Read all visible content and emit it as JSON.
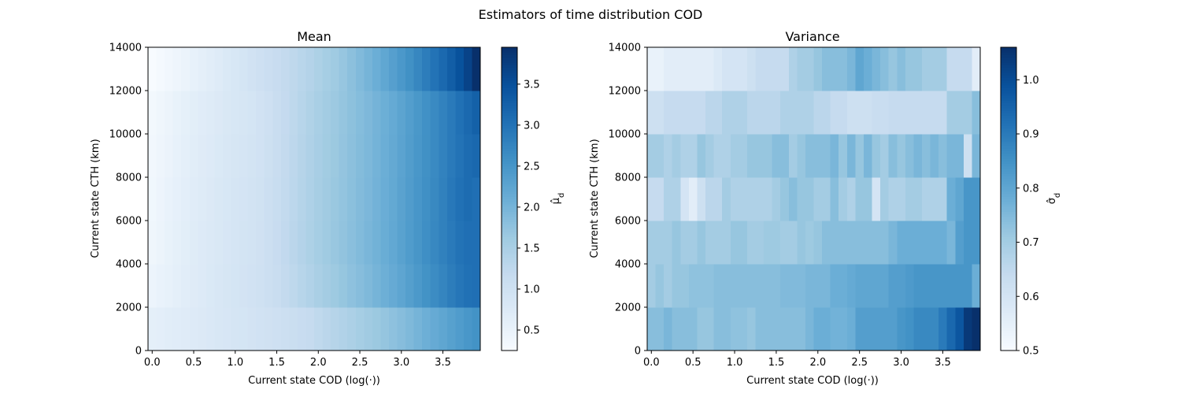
{
  "figure": {
    "suptitle": "Estimators of time distribution COD",
    "colormap": [
      "#f7fbff",
      "#deebf7",
      "#c6dbef",
      "#9ecae1",
      "#6baed6",
      "#4292c6",
      "#2171b5",
      "#08519c",
      "#08306b"
    ]
  },
  "chart_data": [
    {
      "type": "heatmap",
      "title": "Mean",
      "xlabel": "Current state COD (log(·))",
      "ylabel": "Current state CTH (km)",
      "colorbar_label": "μ̂_d",
      "xlim": [
        -0.05,
        3.95
      ],
      "ylim": [
        0,
        14000
      ],
      "xticks": [
        "0.0",
        "0.5",
        "1.0",
        "1.5",
        "2.0",
        "2.5",
        "3.0",
        "3.5"
      ],
      "xtick_values": [
        0.0,
        0.5,
        1.0,
        1.5,
        2.0,
        2.5,
        3.0,
        3.5
      ],
      "yticks": [
        "0",
        "2000",
        "4000",
        "6000",
        "8000",
        "10000",
        "12000",
        "14000"
      ],
      "ytick_values": [
        0,
        2000,
        4000,
        6000,
        8000,
        10000,
        12000,
        14000
      ],
      "colorbar_range": [
        0.25,
        3.95
      ],
      "colorbar_ticks": [
        "0.5",
        "1.0",
        "1.5",
        "2.0",
        "2.5",
        "3.0",
        "3.5"
      ],
      "colorbar_tick_values": [
        0.5,
        1.0,
        1.5,
        2.0,
        2.5,
        3.0,
        3.5
      ],
      "x_bins": 40,
      "y_bin_edges": [
        0,
        2000,
        4000,
        6000,
        8000,
        10000,
        12000,
        14000
      ],
      "values": [
        [
          0.6,
          0.62,
          0.65,
          0.68,
          0.7,
          0.73,
          0.76,
          0.79,
          0.82,
          0.85,
          0.88,
          0.9,
          0.93,
          0.96,
          0.99,
          1.02,
          1.06,
          1.1,
          1.14,
          1.18,
          1.24,
          1.3,
          1.36,
          1.42,
          1.48,
          1.54,
          1.6,
          1.66,
          1.72,
          1.78,
          1.85,
          1.92,
          2.0,
          2.08,
          2.16,
          2.24,
          2.32,
          2.4,
          2.48,
          2.55
        ],
        [
          0.45,
          0.5,
          0.55,
          0.6,
          0.65,
          0.7,
          0.74,
          0.78,
          0.82,
          0.86,
          0.9,
          0.93,
          0.96,
          1.0,
          1.05,
          1.12,
          1.2,
          1.27,
          1.35,
          1.42,
          1.5,
          1.57,
          1.64,
          1.71,
          1.78,
          1.85,
          1.92,
          2.0,
          2.08,
          2.16,
          2.25,
          2.35,
          2.45,
          2.55,
          2.65,
          2.75,
          2.85,
          2.95,
          3.02,
          3.05
        ],
        [
          0.4,
          0.46,
          0.52,
          0.58,
          0.64,
          0.69,
          0.73,
          0.77,
          0.81,
          0.85,
          0.89,
          0.92,
          0.95,
          0.99,
          1.06,
          1.14,
          1.22,
          1.3,
          1.38,
          1.46,
          1.54,
          1.61,
          1.68,
          1.75,
          1.82,
          1.89,
          1.96,
          2.04,
          2.12,
          2.2,
          2.3,
          2.4,
          2.5,
          2.6,
          2.7,
          2.8,
          2.9,
          3.0,
          3.05,
          3.05
        ],
        [
          0.38,
          0.44,
          0.5,
          0.56,
          0.62,
          0.67,
          0.72,
          0.76,
          0.8,
          0.84,
          0.88,
          0.91,
          0.94,
          0.98,
          1.05,
          1.13,
          1.21,
          1.29,
          1.37,
          1.45,
          1.53,
          1.6,
          1.67,
          1.74,
          1.81,
          1.88,
          1.95,
          2.03,
          2.11,
          2.19,
          2.29,
          2.39,
          2.49,
          2.59,
          2.69,
          2.8,
          2.92,
          3.02,
          3.1,
          3.05
        ],
        [
          0.36,
          0.42,
          0.48,
          0.54,
          0.6,
          0.65,
          0.7,
          0.74,
          0.78,
          0.82,
          0.86,
          0.89,
          0.92,
          0.97,
          1.04,
          1.12,
          1.2,
          1.28,
          1.36,
          1.44,
          1.52,
          1.59,
          1.66,
          1.73,
          1.8,
          1.87,
          1.94,
          2.02,
          2.1,
          2.18,
          2.28,
          2.38,
          2.48,
          2.58,
          2.68,
          2.79,
          2.9,
          3.0,
          3.1,
          3.15
        ],
        [
          0.34,
          0.4,
          0.46,
          0.52,
          0.58,
          0.63,
          0.68,
          0.72,
          0.76,
          0.8,
          0.84,
          0.87,
          0.9,
          0.96,
          1.03,
          1.11,
          1.19,
          1.27,
          1.35,
          1.43,
          1.51,
          1.58,
          1.65,
          1.72,
          1.79,
          1.86,
          1.93,
          2.01,
          2.09,
          2.17,
          2.27,
          2.37,
          2.47,
          2.57,
          2.67,
          2.78,
          2.9,
          3.02,
          3.14,
          3.26
        ],
        [
          0.25,
          0.3,
          0.36,
          0.42,
          0.48,
          0.54,
          0.6,
          0.66,
          0.72,
          0.78,
          0.84,
          0.9,
          0.96,
          1.02,
          1.08,
          1.14,
          1.2,
          1.26,
          1.32,
          1.38,
          1.46,
          1.54,
          1.62,
          1.7,
          1.8,
          1.9,
          2.0,
          2.1,
          2.22,
          2.34,
          2.46,
          2.58,
          2.72,
          2.86,
          3.0,
          3.14,
          3.3,
          3.48,
          3.68,
          3.95
        ]
      ]
    },
    {
      "type": "heatmap",
      "title": "Variance",
      "xlabel": "Current state COD (log(·))",
      "ylabel": "Current state CTH (km)",
      "colorbar_label": "σ̂_d",
      "xlim": [
        -0.05,
        3.95
      ],
      "ylim": [
        0,
        14000
      ],
      "xticks": [
        "0.0",
        "0.5",
        "1.0",
        "1.5",
        "2.0",
        "2.5",
        "3.0",
        "3.5"
      ],
      "xtick_values": [
        0.0,
        0.5,
        1.0,
        1.5,
        2.0,
        2.5,
        3.0,
        3.5
      ],
      "yticks": [
        "0",
        "2000",
        "4000",
        "6000",
        "8000",
        "10000",
        "12000",
        "14000"
      ],
      "ytick_values": [
        0,
        2000,
        4000,
        6000,
        8000,
        10000,
        12000,
        14000
      ],
      "colorbar_range": [
        0.5,
        1.06
      ],
      "colorbar_ticks": [
        "0.5",
        "0.6",
        "0.7",
        "0.8",
        "0.9",
        "1.0"
      ],
      "colorbar_tick_values": [
        0.5,
        0.6,
        0.7,
        0.8,
        0.9,
        1.0
      ],
      "x_bins": 40,
      "y_bin_edges": [
        0,
        2000,
        4000,
        6000,
        8000,
        10000,
        12000,
        14000
      ],
      "values": [
        [
          0.74,
          0.74,
          0.76,
          0.74,
          0.74,
          0.74,
          0.72,
          0.72,
          0.74,
          0.74,
          0.73,
          0.73,
          0.72,
          0.74,
          0.74,
          0.74,
          0.74,
          0.74,
          0.74,
          0.76,
          0.78,
          0.78,
          0.77,
          0.77,
          0.78,
          0.82,
          0.82,
          0.82,
          0.82,
          0.82,
          0.84,
          0.85,
          0.87,
          0.87,
          0.87,
          0.9,
          0.94,
          0.98,
          1.04,
          1.06
        ],
        [
          0.7,
          0.72,
          0.7,
          0.72,
          0.72,
          0.73,
          0.73,
          0.73,
          0.74,
          0.74,
          0.74,
          0.74,
          0.74,
          0.74,
          0.74,
          0.74,
          0.75,
          0.75,
          0.75,
          0.76,
          0.76,
          0.76,
          0.78,
          0.78,
          0.79,
          0.8,
          0.8,
          0.8,
          0.8,
          0.82,
          0.82,
          0.83,
          0.84,
          0.84,
          0.84,
          0.84,
          0.84,
          0.84,
          0.84,
          0.78
        ],
        [
          0.7,
          0.7,
          0.7,
          0.72,
          0.7,
          0.7,
          0.72,
          0.7,
          0.7,
          0.7,
          0.72,
          0.72,
          0.7,
          0.7,
          0.71,
          0.71,
          0.7,
          0.7,
          0.72,
          0.71,
          0.72,
          0.74,
          0.74,
          0.74,
          0.74,
          0.74,
          0.74,
          0.74,
          0.74,
          0.76,
          0.78,
          0.78,
          0.78,
          0.78,
          0.78,
          0.78,
          0.76,
          0.82,
          0.84,
          0.84
        ],
        [
          0.64,
          0.64,
          0.68,
          0.68,
          0.6,
          0.56,
          0.62,
          0.66,
          0.66,
          0.7,
          0.68,
          0.68,
          0.68,
          0.68,
          0.68,
          0.7,
          0.72,
          0.74,
          0.72,
          0.72,
          0.7,
          0.7,
          0.74,
          0.7,
          0.68,
          0.72,
          0.72,
          0.6,
          0.7,
          0.68,
          0.68,
          0.7,
          0.7,
          0.68,
          0.68,
          0.68,
          0.78,
          0.8,
          0.84,
          0.84
        ],
        [
          0.7,
          0.7,
          0.68,
          0.7,
          0.68,
          0.68,
          0.72,
          0.7,
          0.68,
          0.68,
          0.7,
          0.7,
          0.72,
          0.72,
          0.72,
          0.74,
          0.74,
          0.7,
          0.72,
          0.74,
          0.74,
          0.74,
          0.76,
          0.72,
          0.76,
          0.72,
          0.76,
          0.72,
          0.7,
          0.74,
          0.72,
          0.74,
          0.76,
          0.74,
          0.76,
          0.74,
          0.76,
          0.76,
          0.62,
          0.76
        ],
        [
          0.62,
          0.62,
          0.64,
          0.64,
          0.64,
          0.64,
          0.64,
          0.66,
          0.66,
          0.68,
          0.68,
          0.68,
          0.66,
          0.66,
          0.66,
          0.66,
          0.68,
          0.68,
          0.68,
          0.68,
          0.66,
          0.66,
          0.64,
          0.64,
          0.62,
          0.62,
          0.62,
          0.63,
          0.63,
          0.64,
          0.64,
          0.64,
          0.64,
          0.64,
          0.64,
          0.64,
          0.7,
          0.7,
          0.7,
          0.74
        ],
        [
          0.54,
          0.54,
          0.56,
          0.56,
          0.56,
          0.56,
          0.56,
          0.56,
          0.58,
          0.6,
          0.6,
          0.6,
          0.62,
          0.64,
          0.64,
          0.64,
          0.64,
          0.68,
          0.7,
          0.7,
          0.72,
          0.74,
          0.74,
          0.74,
          0.76,
          0.8,
          0.78,
          0.76,
          0.74,
          0.72,
          0.74,
          0.72,
          0.72,
          0.7,
          0.7,
          0.7,
          0.64,
          0.64,
          0.64,
          0.56
        ]
      ]
    }
  ]
}
